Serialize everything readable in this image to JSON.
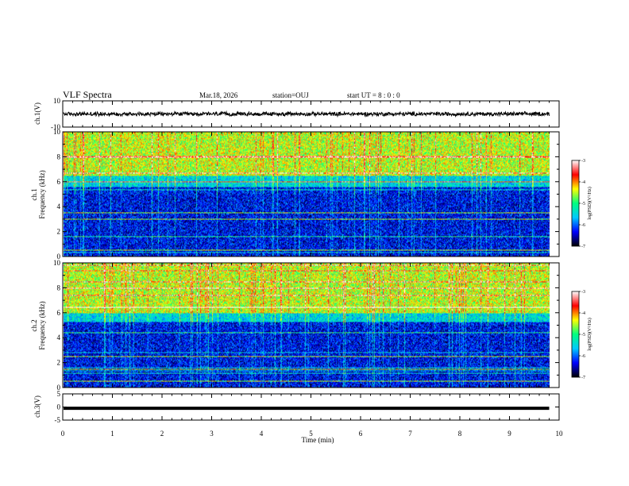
{
  "header": {
    "title": "VLF Spectra",
    "date": "Mar.18, 2026",
    "station": "station=OUJ",
    "start_ut": "start  UT =   8 : 0  : 0"
  },
  "colors": {
    "trace": "#000000",
    "frame": "#000000",
    "colormap": [
      "#000000",
      "#0000ff",
      "#00c8ff",
      "#00ff80",
      "#ffff00",
      "#ff0000",
      "#ffffff"
    ]
  },
  "chart_data": [
    {
      "type": "line",
      "panel": "ch1-waveform",
      "ylabel": "ch.1(V)",
      "ylim": [
        -10,
        10
      ],
      "yticks": [
        "10",
        "-10"
      ],
      "xlim": [
        0,
        10
      ],
      "description_values": {
        "mean": 0,
        "amplitude_approx": 1.5
      },
      "data_end_min": 9.8
    },
    {
      "type": "heatmap",
      "panel": "ch1-spectrogram",
      "ylabel_line1": "ch.1",
      "ylabel_line2": "Frequency  (kHz)",
      "ylim": [
        0,
        10
      ],
      "yticks": [
        "0",
        "2",
        "4",
        "6",
        "8",
        "10"
      ],
      "xlim": [
        0,
        10
      ],
      "data_end_min": 9.8,
      "bands": [
        {
          "range_khz": [
            6.5,
            10
          ],
          "log_psd_approx": -4.6
        },
        {
          "range_khz": [
            5.6,
            6.5
          ],
          "log_psd_approx": -5.6
        },
        {
          "range_khz": [
            0,
            5.6
          ],
          "log_psd_approx": -6.4
        }
      ],
      "lines_khz": [
        0.5,
        3.0,
        3.5,
        6.0
      ]
    },
    {
      "type": "heatmap",
      "panel": "ch2-spectrogram",
      "ylabel_line1": "ch.2",
      "ylabel_line2": "Frequency  (kHz)",
      "ylim": [
        0,
        10
      ],
      "yticks": [
        "0",
        "2",
        "4",
        "6",
        "8",
        "10"
      ],
      "xlim": [
        0,
        10
      ],
      "data_end_min": 9.8,
      "bands": [
        {
          "range_khz": [
            6.0,
            10
          ],
          "log_psd_approx": -4.6
        },
        {
          "range_khz": [
            5.3,
            6.0
          ],
          "log_psd_approx": -5.6
        },
        {
          "range_khz": [
            0,
            5.3
          ],
          "log_psd_approx": -6.4
        }
      ],
      "lines_khz": [
        0.5,
        1.5,
        2.5,
        6.5
      ]
    },
    {
      "type": "line",
      "panel": "ch3-waveform",
      "ylabel": "ch.3(V)",
      "ylim": [
        -5,
        5
      ],
      "yticks": [
        "5",
        "0",
        "-5"
      ],
      "xlim": [
        0,
        10
      ],
      "values_constant": -0.5,
      "data_end_min": 9.8
    }
  ],
  "colorbars": [
    {
      "ticks": [
        "-3",
        "-4",
        "-5",
        "-6",
        "-7"
      ],
      "range": [
        -7,
        -3
      ],
      "title": "log(PSD)(V²/Hz)"
    },
    {
      "ticks": [
        "-3",
        "-4",
        "-5",
        "-6",
        "-7"
      ],
      "range": [
        -7,
        -3
      ],
      "title": "log(PSD)(V²/Hz)"
    }
  ],
  "x_axis": {
    "label": "Time  (min)",
    "ticks": [
      "0",
      "1",
      "2",
      "3",
      "4",
      "5",
      "6",
      "7",
      "8",
      "9",
      "10"
    ],
    "range": [
      0,
      10
    ]
  }
}
